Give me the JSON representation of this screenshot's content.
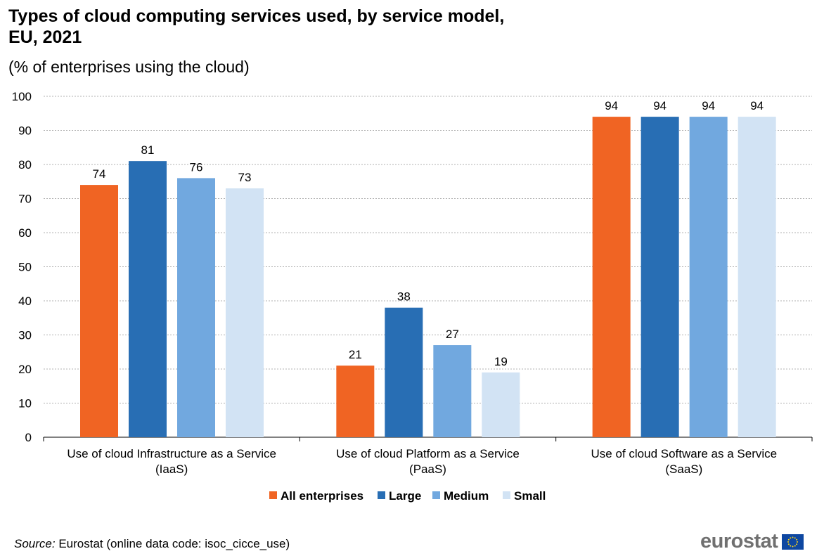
{
  "chart_data": {
    "type": "bar",
    "title": "Types of cloud computing services used, by service model, EU, 2021",
    "title_lines": [
      "Types of cloud computing services used, by service model,",
      "EU, 2021"
    ],
    "subtitle": "(% of enterprises using the cloud)",
    "categories": [
      [
        "Use of cloud Infrastructure as a Service",
        "(IaaS)"
      ],
      [
        "Use of cloud Platform as a Service",
        "(PaaS)"
      ],
      [
        "Use of cloud Software as a Service",
        "(SaaS)"
      ]
    ],
    "series": [
      {
        "name": "All enterprises",
        "color": "#F06423",
        "values": [
          74,
          21,
          94
        ]
      },
      {
        "name": "Large",
        "color": "#286EB4",
        "values": [
          81,
          38,
          94
        ]
      },
      {
        "name": "Medium",
        "color": "#71A8DF",
        "values": [
          76,
          27,
          94
        ]
      },
      {
        "name": "Small",
        "color": "#D2E3F4",
        "values": [
          73,
          19,
          94
        ]
      }
    ],
    "ylim": [
      0,
      100
    ],
    "yticks": [
      0,
      10,
      20,
      30,
      40,
      50,
      60,
      70,
      80,
      90,
      100
    ],
    "grid": true,
    "legend": "bottom",
    "xlabel": "",
    "ylabel": ""
  },
  "source": {
    "label": "Source:",
    "text": " Eurostat (online data code: isoc_cicce_use)"
  },
  "logo": {
    "text": "eurostat"
  }
}
